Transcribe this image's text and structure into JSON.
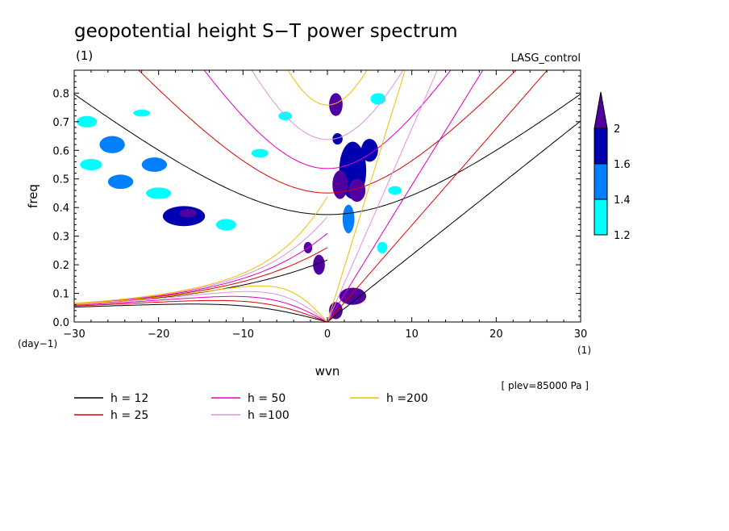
{
  "chart_data": {
    "type": "heatmap",
    "title": "geopotential height S−T power spectrum",
    "subtitle": "(1)",
    "case_label": "LASG_control",
    "xlabel": "wvn",
    "ylabel": "freq",
    "x_unit_label": "(1)",
    "y_unit_label": "(day−1)",
    "xlim": [
      -30,
      30
    ],
    "ylim": [
      0,
      0.88
    ],
    "x_ticks": [
      "−30",
      "−20",
      "−10",
      "0",
      "10",
      "20",
      "30"
    ],
    "x_tick_values": [
      -30,
      -20,
      -10,
      0,
      10,
      20,
      30
    ],
    "y_ticks": [
      "0.0",
      "0.1",
      "0.2",
      "0.3",
      "0.4",
      "0.5",
      "0.6",
      "0.7",
      "0.8"
    ],
    "y_tick_values": [
      0,
      0.1,
      0.2,
      0.3,
      0.4,
      0.5,
      0.6,
      0.7,
      0.8
    ],
    "colorbar": {
      "levels": [
        "1.2",
        "1.4",
        "1.6",
        "2"
      ],
      "colors": [
        "#00ffff",
        "#0080ff",
        "#0000b0",
        "#5000a0"
      ]
    },
    "note": "[ plev=85000 Pa ]",
    "series": [
      {
        "name": "h = 12",
        "h": 12,
        "color": "#000000"
      },
      {
        "name": "h = 25",
        "h": 25,
        "color": "#e00000"
      },
      {
        "name": "h = 50",
        "h": 50,
        "color": "#e000c0"
      },
      {
        "name": "h =100",
        "h": 100,
        "color": "#e090e0"
      },
      {
        "name": "h =200",
        "h": 200,
        "color": "#f0c000"
      }
    ],
    "blobs": [
      {
        "x": 1.0,
        "y": 0.76,
        "rx": 0.8,
        "ry": 0.04,
        "level": 4
      },
      {
        "x": 1.2,
        "y": 0.64,
        "rx": 0.6,
        "ry": 0.02,
        "level": 3
      },
      {
        "x": 3.0,
        "y": 0.53,
        "rx": 1.6,
        "ry": 0.1,
        "level": 3
      },
      {
        "x": 3.5,
        "y": 0.46,
        "rx": 1.0,
        "ry": 0.04,
        "level": 4
      },
      {
        "x": 1.5,
        "y": 0.48,
        "rx": 0.9,
        "ry": 0.05,
        "level": 4
      },
      {
        "x": 5.0,
        "y": 0.6,
        "rx": 1.0,
        "ry": 0.04,
        "level": 3
      },
      {
        "x": 2.5,
        "y": 0.36,
        "rx": 0.7,
        "ry": 0.05,
        "level": 2
      },
      {
        "x": -2.3,
        "y": 0.26,
        "rx": 0.5,
        "ry": 0.02,
        "level": 4
      },
      {
        "x": -1.0,
        "y": 0.2,
        "rx": 0.7,
        "ry": 0.035,
        "level": 4
      },
      {
        "x": 3.0,
        "y": 0.09,
        "rx": 1.6,
        "ry": 0.03,
        "level": 4
      },
      {
        "x": 1.0,
        "y": 0.04,
        "rx": 0.8,
        "ry": 0.03,
        "level": 4
      },
      {
        "x": -17.0,
        "y": 0.37,
        "rx": 2.5,
        "ry": 0.035,
        "level": 3
      },
      {
        "x": -16.5,
        "y": 0.38,
        "rx": 1.0,
        "ry": 0.015,
        "level": 4
      },
      {
        "x": -24.5,
        "y": 0.49,
        "rx": 1.5,
        "ry": 0.025,
        "level": 2
      },
      {
        "x": -20.5,
        "y": 0.55,
        "rx": 1.5,
        "ry": 0.025,
        "level": 2
      },
      {
        "x": -25.5,
        "y": 0.62,
        "rx": 1.5,
        "ry": 0.03,
        "level": 2
      },
      {
        "x": -28.5,
        "y": 0.7,
        "rx": 1.2,
        "ry": 0.02,
        "level": 1
      },
      {
        "x": -12.0,
        "y": 0.34,
        "rx": 1.2,
        "ry": 0.02,
        "level": 1
      },
      {
        "x": -20.0,
        "y": 0.45,
        "rx": 1.5,
        "ry": 0.02,
        "level": 1
      },
      {
        "x": -8.0,
        "y": 0.59,
        "rx": 1.0,
        "ry": 0.015,
        "level": 1
      },
      {
        "x": -28.0,
        "y": 0.55,
        "rx": 1.3,
        "ry": 0.02,
        "level": 1
      },
      {
        "x": 8.0,
        "y": 0.46,
        "rx": 0.8,
        "ry": 0.015,
        "level": 1
      },
      {
        "x": 6.5,
        "y": 0.26,
        "rx": 0.6,
        "ry": 0.02,
        "level": 1
      },
      {
        "x": -5.0,
        "y": 0.72,
        "rx": 0.8,
        "ry": 0.015,
        "level": 1
      },
      {
        "x": 6.0,
        "y": 0.78,
        "rx": 0.9,
        "ry": 0.02,
        "level": 1
      },
      {
        "x": -22.0,
        "y": 0.73,
        "rx": 1.0,
        "ry": 0.012,
        "level": 1
      }
    ],
    "level_colors": {
      "1": "#00ffff",
      "2": "#0080ff",
      "3": "#0000b0",
      "4": "#5000a0"
    }
  }
}
